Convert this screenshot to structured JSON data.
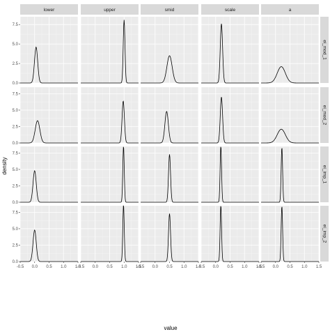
{
  "chart_data": {
    "type": "area",
    "facet_columns": [
      "lower",
      "upper",
      "smid",
      "scale",
      "a"
    ],
    "facet_rows": [
      "ei_mod_1",
      "ei_mod_2",
      "ei_imp_1",
      "ei_imp_2"
    ],
    "xlabel": "value",
    "ylabel": "density",
    "xlim": [
      -0.5,
      1.5
    ],
    "ylim": [
      0,
      8.5
    ],
    "x_ticks": [
      "-0.5",
      "0.0",
      "0.5",
      "1.0",
      "1.5"
    ],
    "y_ticks": [
      "0.0",
      "2.5",
      "5.0",
      "7.5"
    ],
    "grid": true,
    "series_peaks": [
      [
        {
          "facet": "lower / ei_mod_1",
          "peak_x": 0.05,
          "peak_density": 4.6
        },
        {
          "facet": "upper / ei_mod_1",
          "peak_x": 1.0,
          "peak_density": 8.1
        },
        {
          "facet": "smid / ei_mod_1",
          "peak_x": 0.5,
          "peak_density": 3.5
        },
        {
          "facet": "scale / ei_mod_1",
          "peak_x": 0.2,
          "peak_density": 7.6
        },
        {
          "facet": "a / ei_mod_1",
          "peak_x": 0.2,
          "peak_density": 2.1
        }
      ],
      [
        {
          "facet": "lower / ei_mod_2",
          "peak_x": 0.1,
          "peak_density": 3.4
        },
        {
          "facet": "upper / ei_mod_2",
          "peak_x": 0.97,
          "peak_density": 6.4
        },
        {
          "facet": "smid / ei_mod_2",
          "peak_x": 0.4,
          "peak_density": 4.8
        },
        {
          "facet": "scale / ei_mod_2",
          "peak_x": 0.2,
          "peak_density": 7.0
        },
        {
          "facet": "a / ei_mod_2",
          "peak_x": 0.2,
          "peak_density": 2.1
        }
      ],
      [
        {
          "facet": "lower / ei_imp_1",
          "peak_x": 0.0,
          "peak_density": 4.8
        },
        {
          "facet": "upper / ei_imp_1",
          "peak_x": 0.98,
          "peak_density": 8.6
        },
        {
          "facet": "smid / ei_imp_1",
          "peak_x": 0.5,
          "peak_density": 7.3
        },
        {
          "facet": "scale / ei_imp_1",
          "peak_x": 0.18,
          "peak_density": 8.6
        },
        {
          "facet": "a / ei_imp_1",
          "peak_x": 0.22,
          "peak_density": 8.4
        }
      ],
      [
        {
          "facet": "lower / ei_imp_2",
          "peak_x": 0.0,
          "peak_density": 4.8
        },
        {
          "facet": "upper / ei_imp_2",
          "peak_x": 0.98,
          "peak_density": 8.7
        },
        {
          "facet": "smid / ei_imp_2",
          "peak_x": 0.5,
          "peak_density": 7.3
        },
        {
          "facet": "scale / ei_imp_2",
          "peak_x": 0.18,
          "peak_density": 8.6
        },
        {
          "facet": "a / ei_imp_2",
          "peak_x": 0.22,
          "peak_density": 8.5
        }
      ]
    ],
    "curve_widths": [
      [
        0.055,
        0.03,
        0.09,
        0.04,
        0.14
      ],
      [
        0.08,
        0.04,
        0.06,
        0.04,
        0.14
      ],
      [
        0.055,
        0.025,
        0.035,
        0.025,
        0.025
      ],
      [
        0.055,
        0.025,
        0.035,
        0.025,
        0.025
      ]
    ],
    "colors": {
      "panel_bg": "#ebebeb",
      "grid_major": "#ffffff",
      "strip_bg": "#d9d9d9",
      "line": "#000000"
    }
  }
}
